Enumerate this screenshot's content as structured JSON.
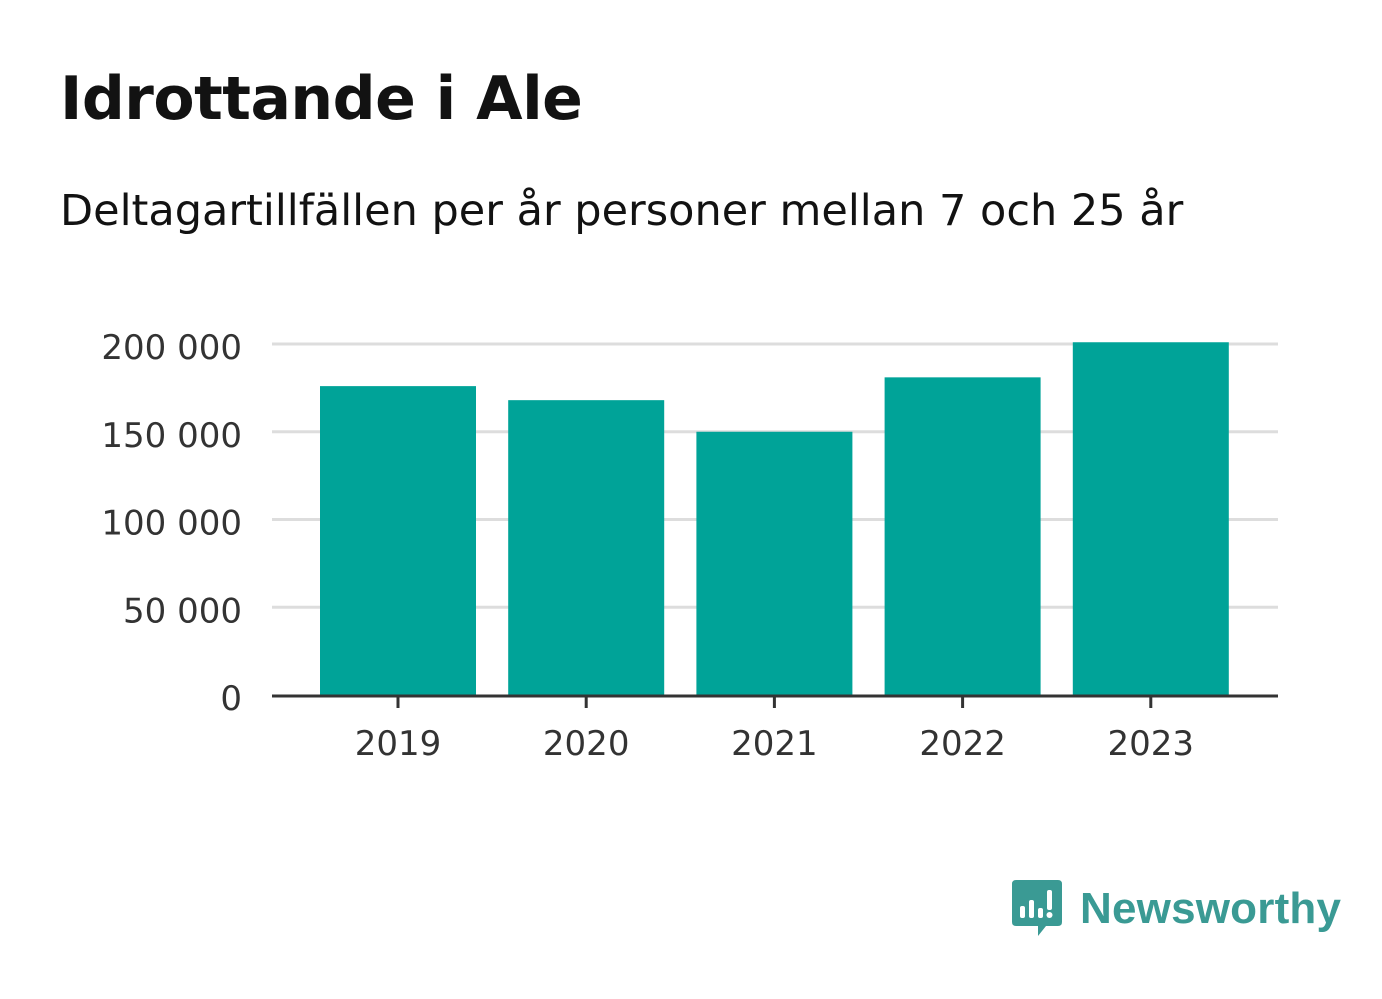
{
  "title": "Idrottande i Ale",
  "subtitle": "Deltagartillfällen per år personer mellan 7 och 25 år",
  "brand": {
    "name": "Newsworthy",
    "icon": "newsworthy-logo-icon",
    "color": "#3a9a94"
  },
  "colors": {
    "bar": "#00a398",
    "grid": "#dddddd",
    "axis": "#333333",
    "tick_text": "#333333"
  },
  "chart_data": {
    "type": "bar",
    "categories": [
      "2019",
      "2020",
      "2021",
      "2022",
      "2023"
    ],
    "values": [
      176000,
      168000,
      150000,
      181000,
      201000
    ],
    "ylim": [
      0,
      200000
    ],
    "yticks": [
      0,
      50000,
      100000,
      150000,
      200000
    ],
    "ytick_labels": [
      "0",
      "50 000",
      "100 000",
      "150 000",
      "200 000"
    ],
    "xlabel": "",
    "ylabel": "",
    "grid": true,
    "legend": "none"
  }
}
